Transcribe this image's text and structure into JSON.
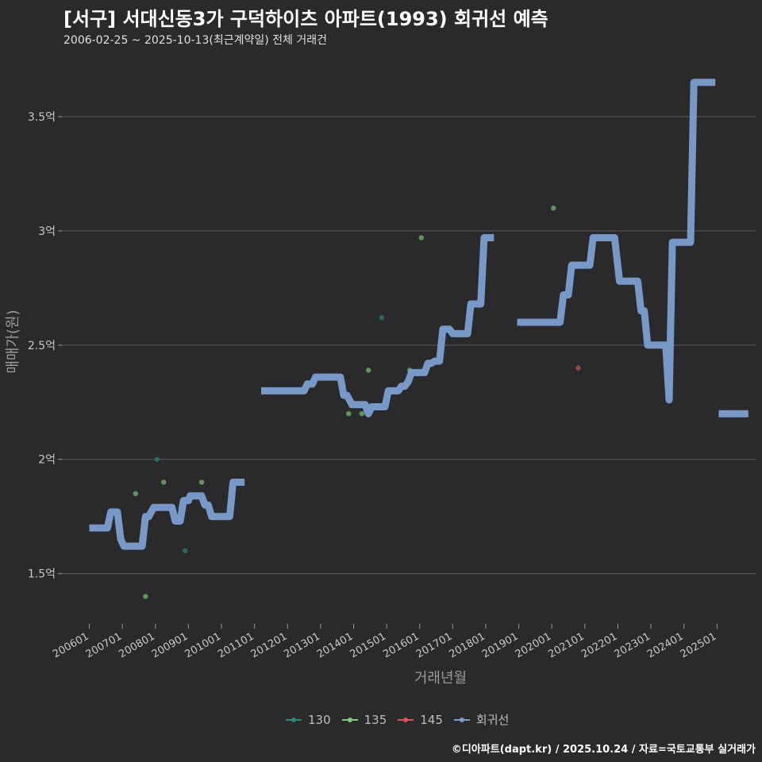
{
  "title": "[서구] 서대신동3가 구덕하이츠 아파트(1993) 회귀선 예측",
  "subtitle": "2006-02-25 ~ 2025-10-13(최근계약일) 전체 거래건",
  "caption": "©디아파트(dapt.kr) / 2025.10.24 / 자료=국토교통부 실거래가",
  "chart_data": {
    "type": "scatter",
    "xlabel": "거래년월",
    "ylabel": "매매가(원)",
    "x_tick_labels": [
      "200601",
      "200701",
      "200801",
      "200901",
      "201001",
      "201101",
      "201201",
      "201301",
      "201401",
      "201501",
      "201601",
      "201701",
      "201801",
      "201901",
      "202001",
      "202101",
      "202201",
      "202301",
      "202401",
      "202501"
    ],
    "x_range": [
      2005.17,
      2026.17
    ],
    "ylim": [
      1.28,
      3.75
    ],
    "y_ticks": [
      1.5,
      2.0,
      2.5,
      3.0,
      3.5
    ],
    "y_tick_labels": [
      "1.5억",
      "2억",
      "2.5억",
      "3억",
      "3.5억"
    ],
    "legend": [
      {
        "name": "130",
        "color": "#2a8a7c"
      },
      {
        "name": "135",
        "color": "#7fd07a"
      },
      {
        "name": "145",
        "color": "#d9545a"
      },
      {
        "name": "회귀선",
        "color": "#7b9dcc"
      }
    ],
    "series": [
      {
        "name": "130",
        "color": "#2a8a7c",
        "points": [
          [
            2008.05,
            2.0
          ],
          [
            2008.9,
            1.6
          ],
          [
            2014.85,
            2.62
          ]
        ]
      },
      {
        "name": "135",
        "color": "#7fd07a",
        "points": [
          [
            2007.4,
            1.85
          ],
          [
            2007.7,
            1.4
          ],
          [
            2008.25,
            1.9
          ],
          [
            2009.4,
            1.9
          ],
          [
            2013.85,
            2.2
          ],
          [
            2014.25,
            2.2
          ],
          [
            2014.45,
            2.39
          ],
          [
            2015.2,
            2.3
          ],
          [
            2015.7,
            2.39
          ],
          [
            2016.05,
            2.97
          ],
          [
            2020.05,
            3.1
          ],
          [
            2020.8,
            2.85
          ]
        ]
      },
      {
        "name": "145",
        "color": "#d9545a",
        "points": [
          [
            2020.8,
            2.4
          ]
        ]
      }
    ],
    "regression": {
      "name": "회귀선",
      "color": "#7b9dcc",
      "segments": [
        [
          [
            2006.0,
            1.7
          ],
          [
            2006.55,
            1.7
          ],
          [
            2006.65,
            1.77
          ],
          [
            2006.85,
            1.77
          ],
          [
            2006.95,
            1.65
          ],
          [
            2007.05,
            1.62
          ],
          [
            2007.6,
            1.62
          ],
          [
            2007.7,
            1.75
          ],
          [
            2007.8,
            1.75
          ],
          [
            2007.95,
            1.79
          ],
          [
            2008.5,
            1.79
          ],
          [
            2008.6,
            1.73
          ],
          [
            2008.75,
            1.73
          ],
          [
            2008.85,
            1.82
          ],
          [
            2009.0,
            1.82
          ],
          [
            2009.05,
            1.84
          ],
          [
            2009.4,
            1.84
          ],
          [
            2009.5,
            1.8
          ],
          [
            2009.6,
            1.8
          ],
          [
            2009.7,
            1.75
          ],
          [
            2010.25,
            1.75
          ],
          [
            2010.35,
            1.9
          ],
          [
            2010.7,
            1.9
          ]
        ],
        [
          [
            2011.2,
            2.3
          ],
          [
            2012.5,
            2.3
          ],
          [
            2012.6,
            2.33
          ],
          [
            2012.75,
            2.33
          ],
          [
            2012.85,
            2.36
          ],
          [
            2013.6,
            2.36
          ],
          [
            2013.7,
            2.28
          ],
          [
            2013.8,
            2.28
          ],
          [
            2013.95,
            2.24
          ],
          [
            2014.35,
            2.24
          ],
          [
            2014.45,
            2.2
          ],
          [
            2014.55,
            2.23
          ],
          [
            2014.95,
            2.23
          ],
          [
            2015.05,
            2.3
          ],
          [
            2015.35,
            2.3
          ],
          [
            2015.45,
            2.32
          ],
          [
            2015.55,
            2.32
          ],
          [
            2015.65,
            2.34
          ],
          [
            2015.75,
            2.38
          ],
          [
            2016.15,
            2.38
          ],
          [
            2016.25,
            2.42
          ],
          [
            2016.35,
            2.42
          ],
          [
            2016.45,
            2.43
          ],
          [
            2016.6,
            2.43
          ],
          [
            2016.7,
            2.57
          ],
          [
            2016.9,
            2.57
          ],
          [
            2017.0,
            2.55
          ],
          [
            2017.45,
            2.55
          ],
          [
            2017.55,
            2.68
          ],
          [
            2017.85,
            2.68
          ],
          [
            2017.95,
            2.97
          ],
          [
            2018.25,
            2.97
          ]
        ],
        [
          [
            2018.95,
            2.6
          ],
          [
            2020.25,
            2.6
          ],
          [
            2020.35,
            2.72
          ],
          [
            2020.5,
            2.72
          ],
          [
            2020.6,
            2.85
          ],
          [
            2021.15,
            2.85
          ],
          [
            2021.25,
            2.97
          ],
          [
            2021.9,
            2.97
          ],
          [
            2022.05,
            2.78
          ],
          [
            2022.6,
            2.78
          ],
          [
            2022.7,
            2.65
          ],
          [
            2022.8,
            2.65
          ],
          [
            2022.9,
            2.5
          ],
          [
            2023.45,
            2.5
          ],
          [
            2023.55,
            2.26
          ],
          [
            2023.65,
            2.95
          ],
          [
            2024.2,
            2.95
          ],
          [
            2024.3,
            3.65
          ],
          [
            2024.95,
            3.65
          ]
        ],
        [
          [
            2025.05,
            2.2
          ],
          [
            2025.95,
            2.2
          ]
        ]
      ]
    }
  }
}
